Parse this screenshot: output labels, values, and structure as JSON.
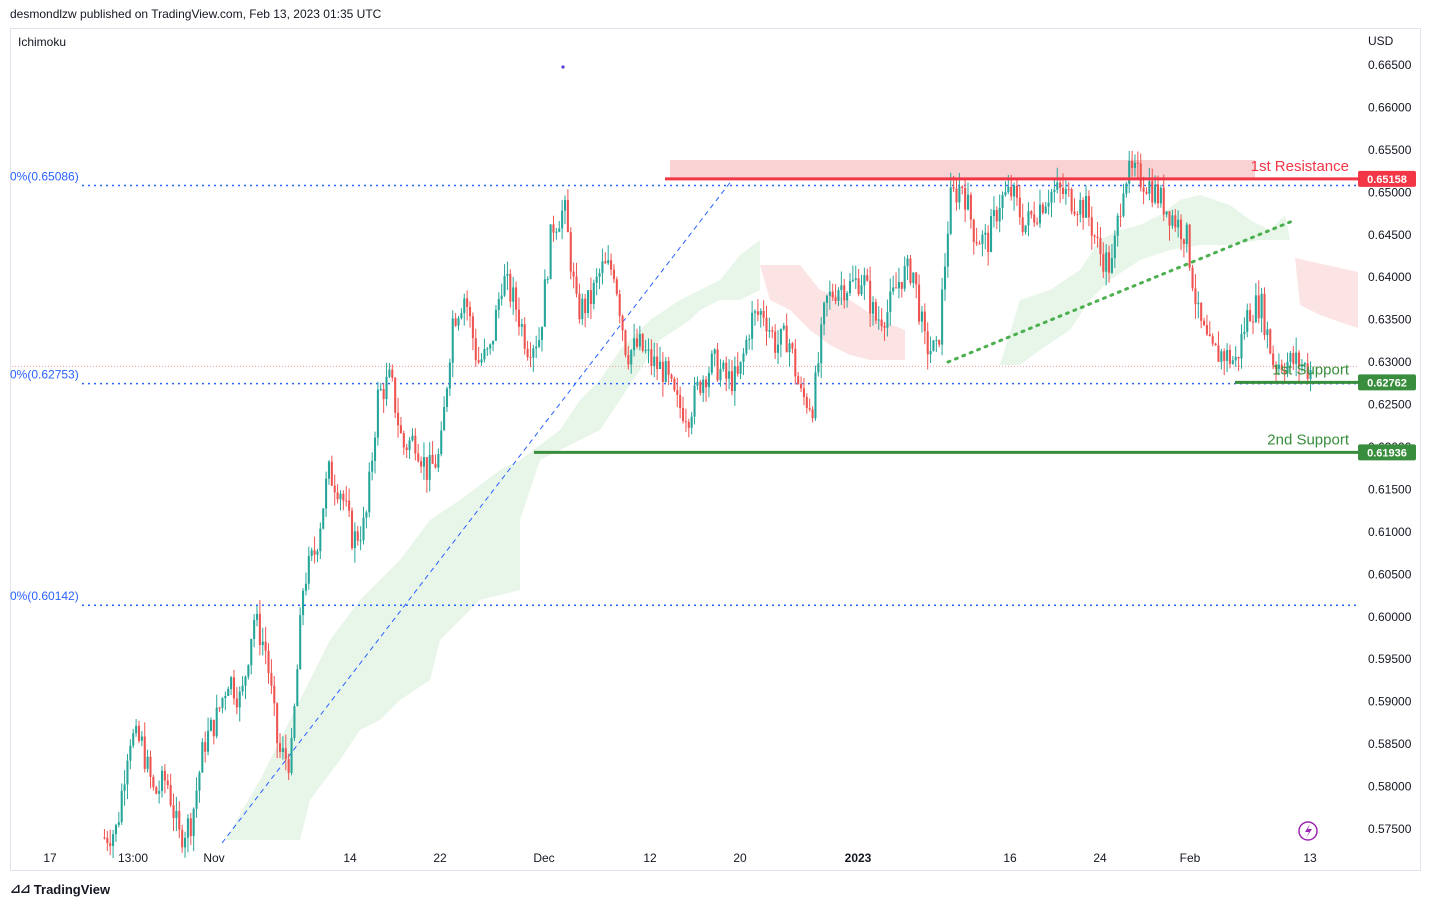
{
  "header": {
    "text": "desmondlzw published on TradingView.com, Feb 13, 2023 01:35 UTC"
  },
  "footer": {
    "brand": "TradingView",
    "logo_icon": "tradingview-logo-icon"
  },
  "indicator": {
    "name": "Ichimoku"
  },
  "currency": "USD",
  "colors": {
    "up": "#26a69a",
    "down": "#ef5350",
    "resistance": "#f23645",
    "support": "#388e3c",
    "fib": "#2962ff",
    "trendline": "#4caf50",
    "cloud_green": "#e8f5e9",
    "cloud_red": "#fde4e4"
  },
  "chart_data": {
    "type": "candlestick",
    "symbol_note": "",
    "y_axis": {
      "ticks": [
        "0.66500",
        "0.66000",
        "0.65500",
        "0.65000",
        "0.64500",
        "0.64000",
        "0.63500",
        "0.63000",
        "0.62500",
        "0.62000",
        "0.61500",
        "0.61000",
        "0.60500",
        "0.60000",
        "0.59500",
        "0.59000",
        "0.58500",
        "0.58000",
        "0.57500"
      ],
      "range": [
        0.5725,
        0.6685
      ]
    },
    "x_axis": {
      "ticks": [
        "17",
        "13:00",
        "Nov",
        "14",
        "22",
        "Dec",
        "12",
        "20",
        "2023",
        "16",
        "24",
        "Feb",
        "13"
      ]
    },
    "fib_levels": [
      {
        "label": "0%(0.65086)",
        "value": 0.65086
      },
      {
        "label": "0%(0.62753)",
        "value": 0.62753
      },
      {
        "label": "0%(0.60142)",
        "value": 0.60142
      }
    ],
    "levels": [
      {
        "name": "1st Resistance",
        "value": 0.65158,
        "badge": "0.65158",
        "kind": "resistance"
      },
      {
        "name": "1st Support",
        "value": 0.62762,
        "badge": "0.62762",
        "kind": "support"
      },
      {
        "name": "2nd Support",
        "value": 0.61936,
        "badge": "0.61936",
        "kind": "support"
      }
    ],
    "price_path": [
      [
        0.574,
        0.575
      ],
      [
        0.586,
        0.585
      ],
      [
        0.579,
        0.581
      ],
      [
        0.574,
        0.576
      ],
      [
        0.585,
        0.588
      ],
      [
        0.593,
        0.59
      ],
      [
        0.6,
        0.596
      ],
      [
        0.584,
        0.583
      ],
      [
        0.604,
        0.608
      ],
      [
        0.617,
        0.615
      ],
      [
        0.609,
        0.611
      ],
      [
        0.626,
        0.628
      ],
      [
        0.62,
        0.621
      ],
      [
        0.617,
        0.619
      ],
      [
        0.635,
        0.638
      ],
      [
        0.63,
        0.631
      ],
      [
        0.64,
        0.637
      ],
      [
        0.632,
        0.633
      ],
      [
        0.646,
        0.648
      ],
      [
        0.636,
        0.637
      ],
      [
        0.641,
        0.641
      ],
      [
        0.631,
        0.632
      ],
      [
        0.63,
        0.629
      ],
      [
        0.625,
        0.624
      ],
      [
        0.628,
        0.63
      ],
      [
        0.628,
        0.628
      ],
      [
        0.635,
        0.636
      ],
      [
        0.632,
        0.633
      ],
      [
        0.626,
        0.625
      ],
      [
        0.637,
        0.639
      ],
      [
        0.639,
        0.64
      ],
      [
        0.635,
        0.636
      ],
      [
        0.64,
        0.641
      ],
      [
        0.632,
        0.631
      ],
      [
        0.649,
        0.651
      ],
      [
        0.645,
        0.644
      ],
      [
        0.649,
        0.65
      ],
      [
        0.646,
        0.648
      ],
      [
        0.65,
        0.65
      ],
      [
        0.649,
        0.648
      ],
      [
        0.643,
        0.641
      ],
      [
        0.652,
        0.652
      ],
      [
        0.651,
        0.649
      ],
      [
        0.647,
        0.645
      ],
      [
        0.635,
        0.631
      ],
      [
        0.631,
        0.63
      ],
      [
        0.636,
        0.637
      ],
      [
        0.63,
        0.63
      ],
      [
        0.63,
        0.629
      ]
    ]
  }
}
